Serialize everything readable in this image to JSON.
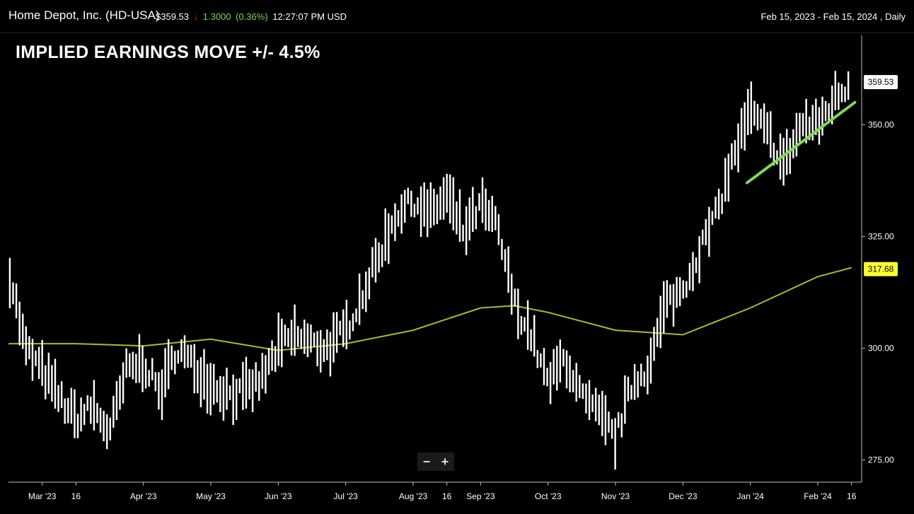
{
  "header": {
    "title": "Home Depot, Inc. (HD-USA)",
    "price": "$359.53",
    "arrow": "↓",
    "change": "1.3000",
    "change_pct": "(0.36%)",
    "time": "12:27:07 PM USD",
    "range": "Feb 15, 2023 - Feb 15, 2024 , Daily"
  },
  "headline": "IMPLIED EARNINGS MOVE +/- 4.5%",
  "zoom": {
    "minus": "−",
    "plus": "+"
  },
  "colors": {
    "bars": "#ffffff",
    "ma": "#b5b52a",
    "trend": "#7ed957",
    "ma_label_bg": "#ffff33",
    "background": "#000000"
  },
  "chart_data": {
    "type": "line",
    "ylim": [
      270,
      370
    ],
    "yticks": [
      275,
      300,
      325,
      350
    ],
    "ytick_labels": [
      "275.00",
      "300.00",
      "325.00",
      "350.00"
    ],
    "xtick_labels": [
      "Mar '23",
      "16",
      "Apr '23",
      "May '23",
      "Jun '23",
      "Jul '23",
      "Aug '23",
      "16",
      "Sep '23",
      "Oct '23",
      "Nov '23",
      "Dec '23",
      "Jan '24",
      "Feb '24",
      "16"
    ],
    "xticks_month": [
      0.5,
      1.0,
      2.0,
      3.0,
      4.0,
      5.0,
      6.0,
      6.5,
      7.0,
      8.0,
      9.0,
      10.0,
      11.0,
      12.0,
      12.5
    ],
    "price_series": {
      "name": "HD",
      "x_month": [
        0.0,
        0.25,
        0.5,
        0.75,
        1.0,
        1.25,
        1.5,
        1.75,
        2.0,
        2.25,
        2.5,
        2.75,
        3.0,
        3.25,
        3.5,
        3.75,
        4.0,
        4.25,
        4.5,
        4.75,
        5.0,
        5.25,
        5.5,
        5.75,
        6.0,
        6.25,
        6.5,
        6.75,
        7.0,
        7.25,
        7.5,
        7.75,
        8.0,
        8.25,
        8.5,
        8.75,
        9.0,
        9.25,
        9.5,
        9.75,
        10.0,
        10.25,
        10.5,
        10.75,
        11.0,
        11.25,
        11.5,
        11.75,
        12.0,
        12.25,
        12.5
      ],
      "close": [
        318,
        300,
        295,
        289,
        284,
        287,
        281,
        295,
        297,
        290,
        300,
        296,
        292,
        290,
        290,
        293,
        300,
        303,
        301,
        300,
        304,
        312,
        321,
        330,
        333,
        330,
        334,
        326,
        332,
        327,
        310,
        303,
        292,
        298,
        289,
        285,
        280,
        292,
        296,
        310,
        313,
        322,
        330,
        343,
        353,
        348,
        341,
        350,
        350,
        356,
        359.53
      ]
    },
    "ma_series": {
      "name": "Moving average",
      "x_month": [
        0.0,
        1.0,
        2.0,
        3.0,
        4.0,
        5.0,
        6.0,
        7.0,
        7.5,
        8.0,
        9.0,
        10.0,
        11.0,
        12.0,
        12.5
      ],
      "values": [
        301,
        301,
        300.5,
        302,
        299.5,
        301,
        304,
        309,
        309.5,
        308,
        304,
        303,
        309,
        316,
        318
      ]
    },
    "trendline": {
      "x_month": [
        10.95,
        12.55
      ],
      "values": [
        337,
        355
      ]
    },
    "last_price_label": "359.53",
    "last_price": 359.53,
    "ma_label": "317.68",
    "ma_last": 317.68
  }
}
